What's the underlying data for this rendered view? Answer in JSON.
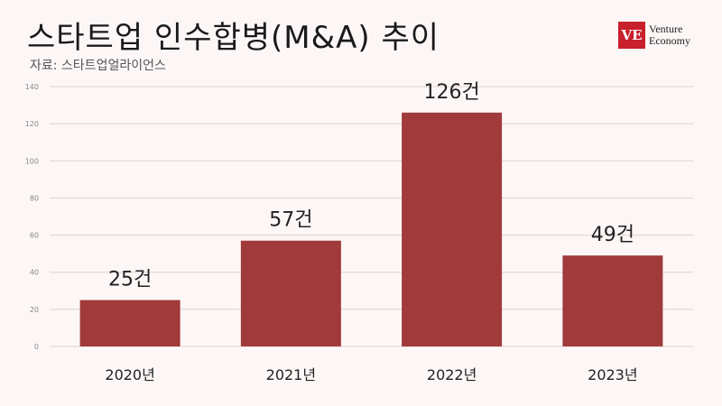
{
  "title": "스타트업 인수합병(M&A) 추이",
  "source": "자료: 스타트업얼라이언스",
  "logo": {
    "badge": "VE",
    "line1": "Venture",
    "line2": "Economy"
  },
  "colors": {
    "bar": "#a13a3a",
    "grid": "#e0d0d0",
    "label": "#222222",
    "tick": "#888888",
    "background": "#fcf7f6"
  },
  "chart_data": {
    "type": "bar",
    "categories": [
      "2020년",
      "2021년",
      "2022년",
      "2023년"
    ],
    "values": [
      25,
      57,
      126,
      49
    ],
    "data_labels": [
      "25건",
      "57건",
      "126건",
      "49건"
    ],
    "yticks": [
      0,
      20,
      40,
      60,
      80,
      100,
      120,
      140
    ],
    "ylim": [
      0,
      140
    ],
    "grid": true,
    "xlabel": "",
    "ylabel": ""
  }
}
